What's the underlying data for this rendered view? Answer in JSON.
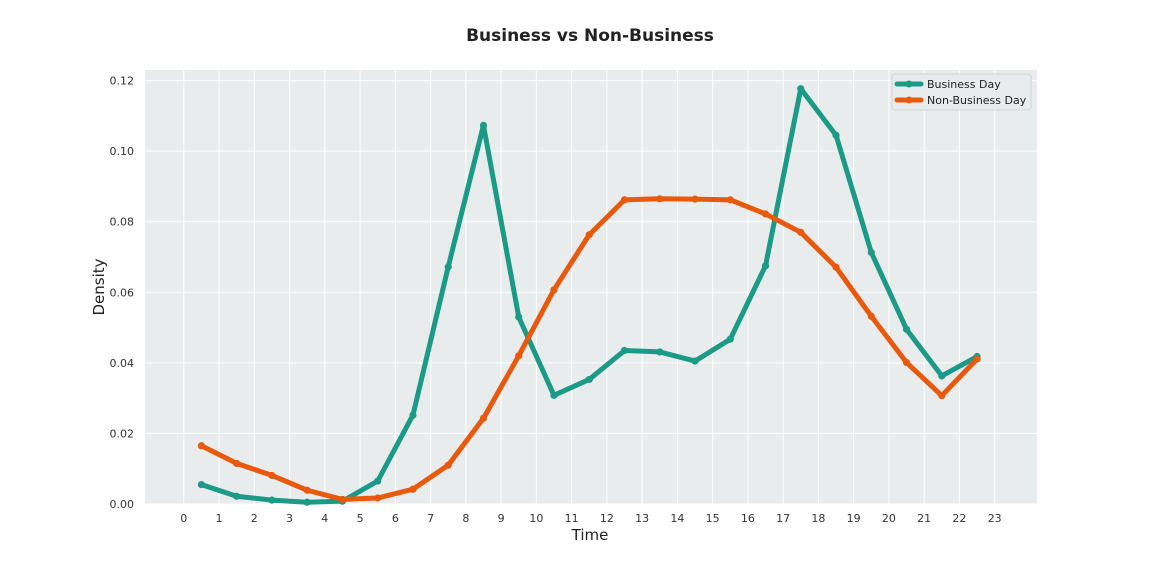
{
  "chart_data": {
    "type": "line",
    "title": "Business vs Non-Business",
    "xlabel": "Time",
    "ylabel": "Density",
    "xticks": [
      0,
      1,
      2,
      3,
      4,
      5,
      6,
      7,
      8,
      9,
      10,
      11,
      12,
      13,
      14,
      15,
      16,
      17,
      18,
      19,
      20,
      21,
      22,
      23
    ],
    "yticks": [
      "0.00",
      "0.02",
      "0.04",
      "0.06",
      "0.08",
      "0.10",
      "0.12"
    ],
    "xlim": [
      -1.1,
      24.2
    ],
    "ylim": [
      0,
      0.123
    ],
    "grid": true,
    "legend_position": "top-right",
    "background_color": "#e8ecec",
    "x": [
      0.5,
      1.5,
      2.5,
      3.5,
      4.5,
      5.5,
      6.5,
      7.5,
      8.5,
      9.5,
      10.5,
      11.5,
      12.5,
      13.5,
      14.5,
      15.5,
      16.5,
      17.5,
      18.5,
      19.5,
      20.5,
      21.5,
      22.5
    ],
    "series": [
      {
        "name": "Business Day",
        "color": "#1a9a87",
        "values": [
          0.0055,
          0.0022,
          0.0011,
          0.0005,
          0.0008,
          0.0065,
          0.0252,
          0.0672,
          0.1073,
          0.053,
          0.0308,
          0.0353,
          0.0435,
          0.0431,
          0.0405,
          0.0467,
          0.0675,
          0.1177,
          0.1045,
          0.0713,
          0.0495,
          0.0363,
          0.0418
        ]
      },
      {
        "name": "Non-Business Day",
        "color": "#e8590c",
        "values": [
          0.0165,
          0.0115,
          0.0081,
          0.0039,
          0.0013,
          0.0017,
          0.0042,
          0.011,
          0.0243,
          0.042,
          0.0607,
          0.0763,
          0.0862,
          0.0865,
          0.0864,
          0.0862,
          0.0822,
          0.077,
          0.0671,
          0.0532,
          0.0401,
          0.0307,
          0.0411
        ]
      }
    ]
  }
}
